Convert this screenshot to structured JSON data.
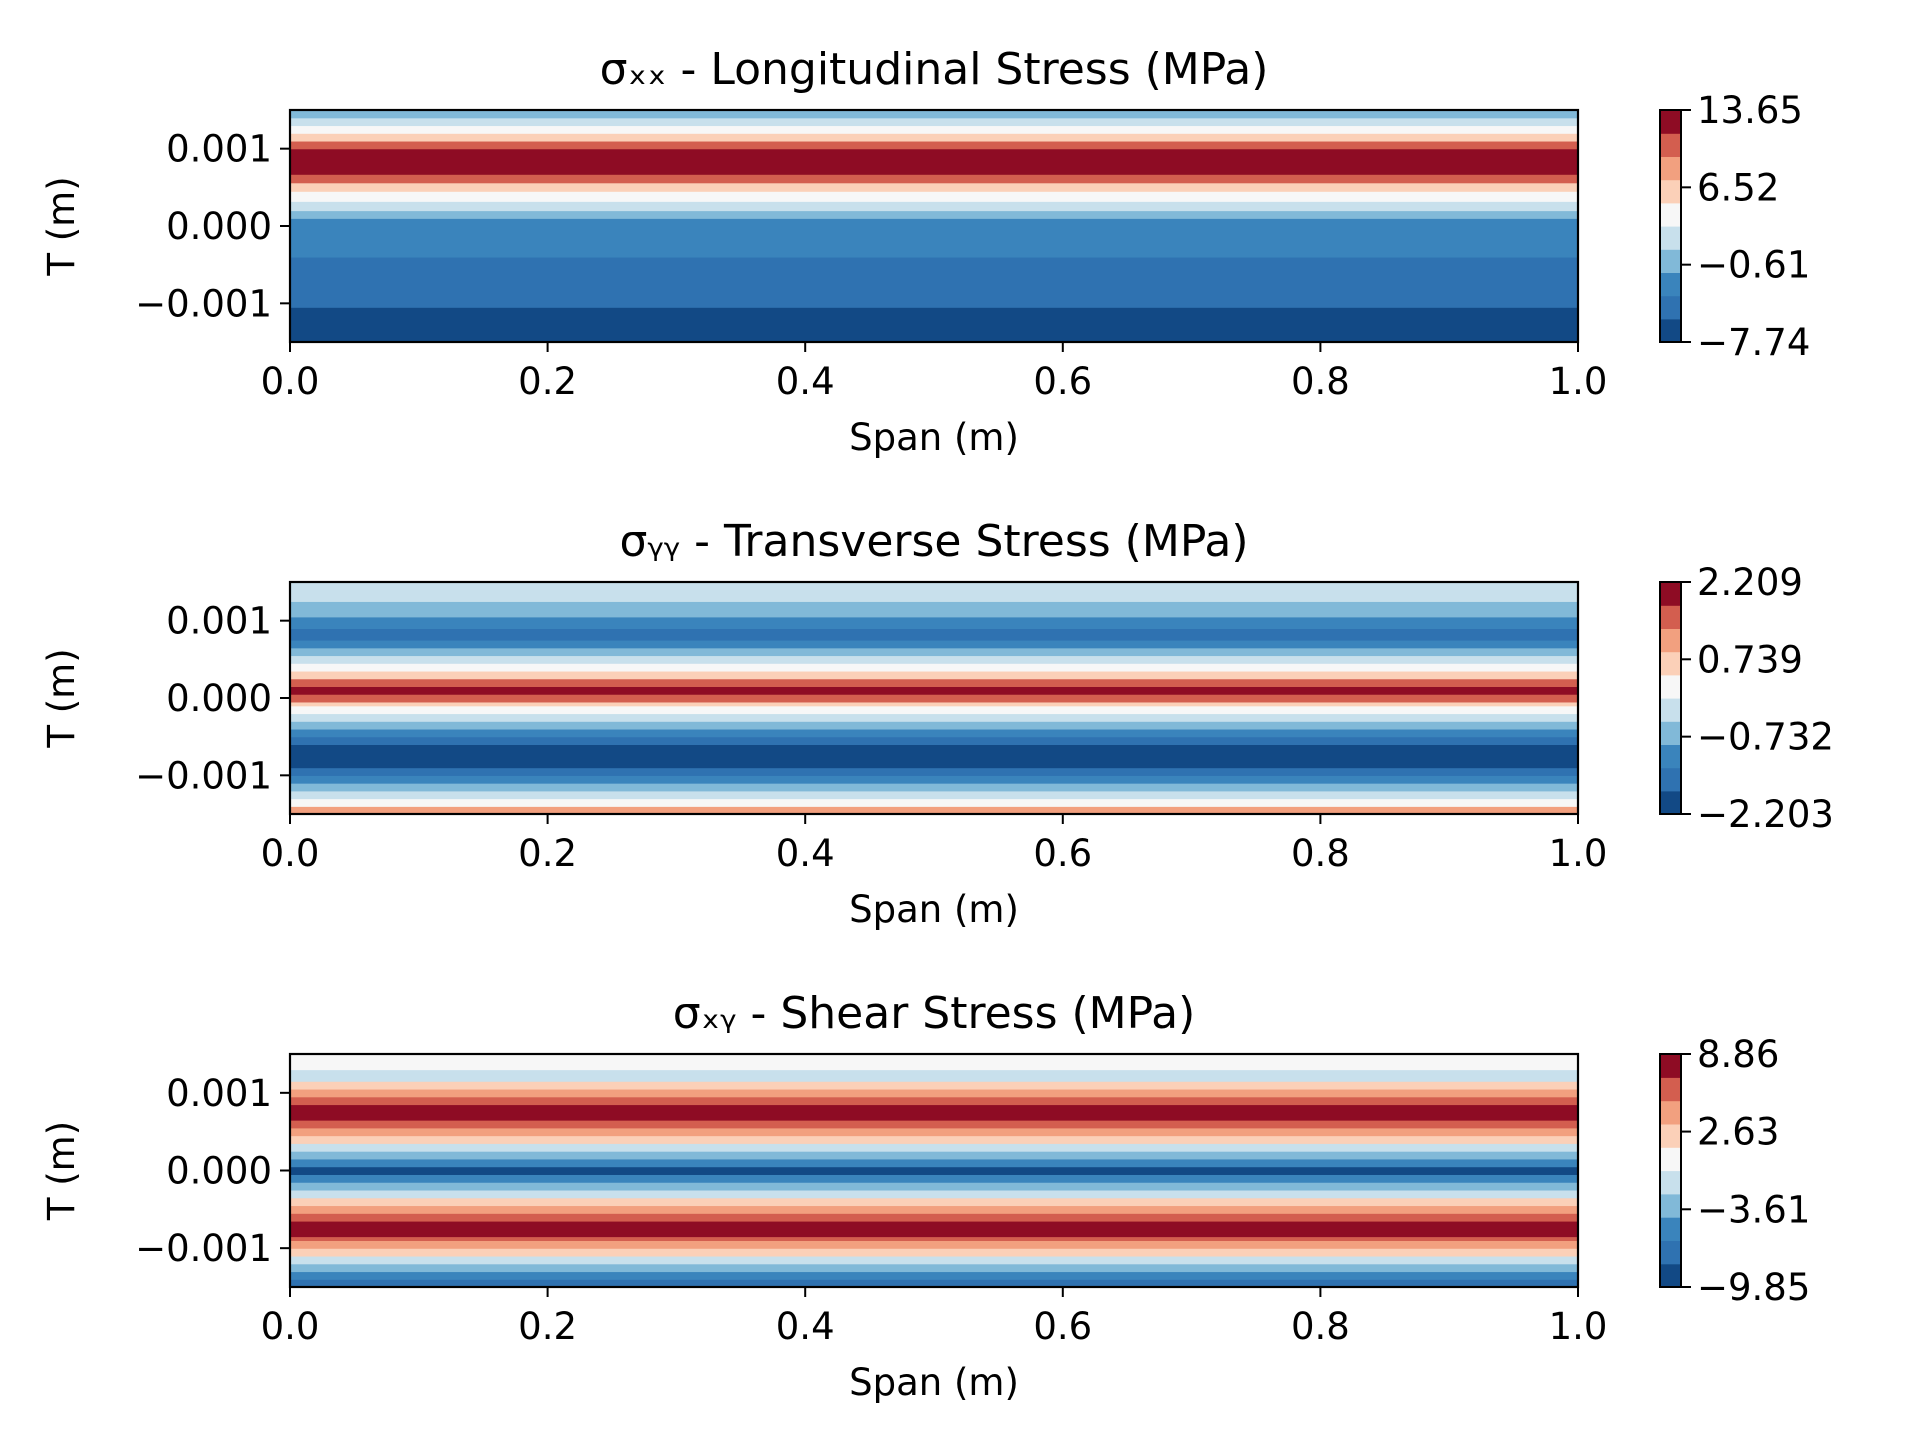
{
  "chart_data": [
    {
      "type": "heatmap",
      "subtype": "filled-contour",
      "title": "σₓₓ - Longitudinal Stress (MPa)",
      "xlabel": "Span (m)",
      "ylabel": "T (m)",
      "xlim": [
        0.0,
        1.0
      ],
      "ylim": [
        -0.0015,
        0.0015
      ],
      "xticks": [
        0.0,
        0.2,
        0.4,
        0.6,
        0.8,
        1.0
      ],
      "xtick_labels": [
        "0.0",
        "0.2",
        "0.4",
        "0.6",
        "0.8",
        "1.0"
      ],
      "yticks": [
        0.001,
        0.0,
        -0.001
      ],
      "ytick_labels": [
        "0.001",
        "0.000",
        "−0.001"
      ],
      "colormap": "RdBu_r",
      "colorbar": {
        "min": -7.74,
        "max": 13.65,
        "ticks": [
          13.65,
          6.52,
          -0.61,
          -7.74
        ],
        "tick_labels": [
          "13.65",
          "6.52",
          "−0.61",
          "−7.74"
        ]
      },
      "bands": [
        {
          "y0": -0.0015,
          "y1": -0.00105,
          "value": -7.2
        },
        {
          "y0": -0.00105,
          "y1": -0.0004,
          "value": -4.6
        },
        {
          "y0": -0.0004,
          "y1": 0.0001,
          "value": -2.2
        },
        {
          "y0": 0.0001,
          "y1": 0.0002,
          "value": 0.8
        },
        {
          "y0": 0.0002,
          "y1": 0.00032,
          "value": 2.6
        },
        {
          "y0": 0.00032,
          "y1": 0.00045,
          "value": 4.7
        },
        {
          "y0": 0.00045,
          "y1": 0.00056,
          "value": 7.2
        },
        {
          "y0": 0.00056,
          "y1": 0.00067,
          "value": 9.4
        },
        {
          "y0": 0.00067,
          "y1": 0.001,
          "value": 12.6
        },
        {
          "y0": 0.001,
          "y1": 0.0011,
          "value": 9.4
        },
        {
          "y0": 0.0011,
          "y1": 0.0012,
          "value": 7.2
        },
        {
          "y0": 0.0012,
          "y1": 0.0013,
          "value": 4.7
        },
        {
          "y0": 0.0013,
          "y1": 0.0014,
          "value": 2.0
        },
        {
          "y0": 0.0014,
          "y1": 0.0015,
          "value": -0.4
        }
      ]
    },
    {
      "type": "heatmap",
      "subtype": "filled-contour",
      "title": "σᵧᵧ - Transverse Stress (MPa)",
      "xlabel": "Span (m)",
      "ylabel": "T (m)",
      "xlim": [
        0.0,
        1.0
      ],
      "ylim": [
        -0.0015,
        0.0015
      ],
      "xticks": [
        0.0,
        0.2,
        0.4,
        0.6,
        0.8,
        1.0
      ],
      "xtick_labels": [
        "0.0",
        "0.2",
        "0.4",
        "0.6",
        "0.8",
        "1.0"
      ],
      "yticks": [
        0.001,
        0.0,
        -0.001
      ],
      "ytick_labels": [
        "0.001",
        "0.000",
        "−0.001"
      ],
      "colormap": "RdBu_r",
      "colorbar": {
        "min": -2.203,
        "max": 2.209,
        "ticks": [
          2.209,
          0.739,
          -0.732,
          -2.203
        ],
        "tick_labels": [
          "2.209",
          "0.739",
          "−0.732",
          "−2.203"
        ]
      },
      "bands": [
        {
          "y0": -0.0015,
          "y1": -0.0014,
          "value": 1.0
        },
        {
          "y0": -0.0014,
          "y1": -0.0013,
          "value": 0.35
        },
        {
          "y0": -0.0013,
          "y1": -0.0012,
          "value": -0.15
        },
        {
          "y0": -0.0012,
          "y1": -0.0011,
          "value": -0.65
        },
        {
          "y0": -0.0011,
          "y1": -0.001,
          "value": -1.1
        },
        {
          "y0": -0.001,
          "y1": -0.0009,
          "value": -1.55
        },
        {
          "y0": -0.0009,
          "y1": -0.0006,
          "value": -2.05
        },
        {
          "y0": -0.0006,
          "y1": -0.0005,
          "value": -1.55
        },
        {
          "y0": -0.0005,
          "y1": -0.0004,
          "value": -1.1
        },
        {
          "y0": -0.0004,
          "y1": -0.0003,
          "value": -0.65
        },
        {
          "y0": -0.0003,
          "y1": -0.0002,
          "value": -0.15
        },
        {
          "y0": -0.0002,
          "y1": -0.0001,
          "value": 0.35
        },
        {
          "y0": -0.0001,
          "y1": -5e-05,
          "value": 0.85
        },
        {
          "y0": -5e-05,
          "y1": 5e-05,
          "value": 1.45
        },
        {
          "y0": 5e-05,
          "y1": 0.00015,
          "value": 2.05
        },
        {
          "y0": 0.00015,
          "y1": 0.00025,
          "value": 1.45
        },
        {
          "y0": 0.00025,
          "y1": 0.00035,
          "value": 0.85
        },
        {
          "y0": 0.00035,
          "y1": 0.00045,
          "value": 0.35
        },
        {
          "y0": 0.00045,
          "y1": 0.00055,
          "value": -0.15
        },
        {
          "y0": 0.00055,
          "y1": 0.00065,
          "value": -0.65
        },
        {
          "y0": 0.00065,
          "y1": 0.00075,
          "value": -1.1
        },
        {
          "y0": 0.00075,
          "y1": 0.0009,
          "value": -1.55
        },
        {
          "y0": 0.0009,
          "y1": 0.00105,
          "value": -1.1
        },
        {
          "y0": 0.00105,
          "y1": 0.00125,
          "value": -0.65
        },
        {
          "y0": 0.00125,
          "y1": 0.0015,
          "value": -0.15
        }
      ]
    },
    {
      "type": "heatmap",
      "subtype": "filled-contour",
      "title": "σₓᵧ - Shear Stress (MPa)",
      "xlabel": "Span (m)",
      "ylabel": "T (m)",
      "xlim": [
        0.0,
        1.0
      ],
      "ylim": [
        -0.0015,
        0.0015
      ],
      "xticks": [
        0.0,
        0.2,
        0.4,
        0.6,
        0.8,
        1.0
      ],
      "xtick_labels": [
        "0.0",
        "0.2",
        "0.4",
        "0.6",
        "0.8",
        "1.0"
      ],
      "yticks": [
        0.001,
        0.0,
        -0.001
      ],
      "ytick_labels": [
        "0.001",
        "0.000",
        "−0.001"
      ],
      "colormap": "RdBu_r",
      "colorbar": {
        "min": -9.85,
        "max": 8.86,
        "ticks": [
          8.86,
          2.63,
          -3.61,
          -9.85
        ],
        "tick_labels": [
          "8.86",
          "2.63",
          "−3.61",
          "−9.85"
        ]
      },
      "bands": [
        {
          "y0": -0.0015,
          "y1": -0.0014,
          "value": -6.7
        },
        {
          "y0": -0.0014,
          "y1": -0.0013,
          "value": -4.7
        },
        {
          "y0": -0.0013,
          "y1": -0.0012,
          "value": -2.6
        },
        {
          "y0": -0.0012,
          "y1": -0.0011,
          "value": -0.5
        },
        {
          "y0": -0.0011,
          "y1": -0.001,
          "value": 1.6
        },
        {
          "y0": -0.001,
          "y1": -0.0009,
          "value": 3.7
        },
        {
          "y0": -0.0009,
          "y1": -0.00085,
          "value": 5.8
        },
        {
          "y0": -0.00085,
          "y1": -0.00065,
          "value": 7.9
        },
        {
          "y0": -0.00065,
          "y1": -0.00055,
          "value": 5.8
        },
        {
          "y0": -0.00055,
          "y1": -0.00045,
          "value": 3.7
        },
        {
          "y0": -0.00045,
          "y1": -0.00035,
          "value": 1.6
        },
        {
          "y0": -0.00035,
          "y1": -0.00025,
          "value": -0.5
        },
        {
          "y0": -0.00025,
          "y1": -0.00015,
          "value": -2.6
        },
        {
          "y0": -0.00015,
          "y1": -5e-05,
          "value": -4.7
        },
        {
          "y0": -5e-05,
          "y1": 5e-05,
          "value": -8.8
        },
        {
          "y0": 5e-05,
          "y1": 0.00015,
          "value": -4.7
        },
        {
          "y0": 0.00015,
          "y1": 0.00025,
          "value": -2.6
        },
        {
          "y0": 0.00025,
          "y1": 0.00035,
          "value": -0.5
        },
        {
          "y0": 0.00035,
          "y1": 0.00045,
          "value": 1.6
        },
        {
          "y0": 0.00045,
          "y1": 0.00055,
          "value": 3.7
        },
        {
          "y0": 0.00055,
          "y1": 0.00065,
          "value": 5.8
        },
        {
          "y0": 0.00065,
          "y1": 0.00085,
          "value": 7.9
        },
        {
          "y0": 0.00085,
          "y1": 0.00095,
          "value": 5.8
        },
        {
          "y0": 0.00095,
          "y1": 0.00105,
          "value": 3.7
        },
        {
          "y0": 0.00105,
          "y1": 0.00115,
          "value": 1.6
        },
        {
          "y0": 0.00115,
          "y1": 0.0013,
          "value": -0.5
        },
        {
          "y0": 0.0013,
          "y1": 0.0015,
          "value": 0.8
        }
      ]
    }
  ]
}
